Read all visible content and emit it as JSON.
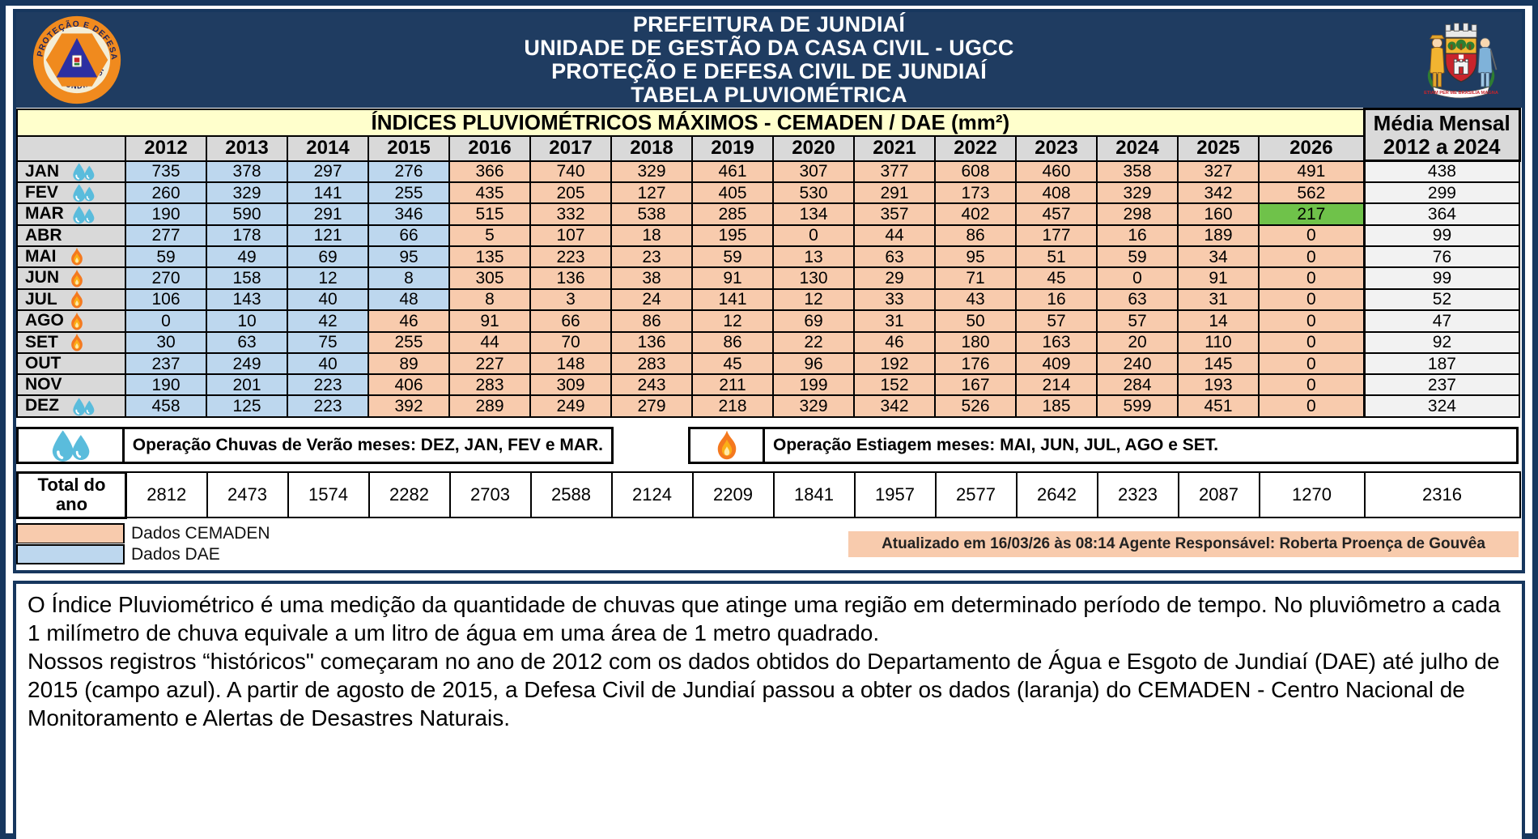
{
  "header": {
    "title_lines": [
      "PREFEITURA DE JUNDIAÍ",
      "UNIDADE DE GESTÃO DA CASA CIVIL - UGCC",
      "PROTEÇÃO E DEFESA CIVIL  DE JUNDIAÍ",
      "TABELA PLUVIOMÉTRICA"
    ],
    "left_logo": "defesa-civil-jundiai-sp",
    "right_logo": "brasao-de-jundiai"
  },
  "table": {
    "title": "ÍNDICES PLUVIOMÉTRICOS MÁXIMOS - CEMADEN / DAE (mm²)",
    "media_header_line1": "Média Mensal",
    "media_header_line2": "2012 a 2024",
    "years": [
      "2012",
      "2013",
      "2014",
      "2015",
      "2016",
      "2017",
      "2018",
      "2019",
      "2020",
      "2021",
      "2022",
      "2023",
      "2024",
      "2025",
      "2026"
    ],
    "rows": [
      {
        "month": "JAN",
        "icon": "water",
        "blue_count": 4,
        "values": [
          735,
          378,
          297,
          276,
          366,
          740,
          329,
          461,
          307,
          377,
          608,
          460,
          358,
          327,
          491
        ],
        "media": 438
      },
      {
        "month": "FEV",
        "icon": "water",
        "blue_count": 4,
        "values": [
          260,
          329,
          141,
          255,
          435,
          205,
          127,
          405,
          530,
          291,
          173,
          408,
          329,
          342,
          562
        ],
        "media": 299
      },
      {
        "month": "MAR",
        "icon": "water",
        "blue_count": 4,
        "green_year": "2026",
        "values": [
          190,
          590,
          291,
          346,
          515,
          332,
          538,
          285,
          134,
          357,
          402,
          457,
          298,
          160,
          217
        ],
        "media": 364
      },
      {
        "month": "ABR",
        "icon": null,
        "blue_count": 4,
        "values": [
          277,
          178,
          121,
          66,
          5,
          107,
          18,
          195,
          0,
          44,
          86,
          177,
          16,
          189,
          0
        ],
        "media": 99
      },
      {
        "month": "MAI",
        "icon": "fire",
        "blue_count": 4,
        "values": [
          59,
          49,
          69,
          95,
          135,
          223,
          23,
          59,
          13,
          63,
          95,
          51,
          59,
          34,
          0
        ],
        "media": 76
      },
      {
        "month": "JUN",
        "icon": "fire",
        "blue_count": 4,
        "values": [
          270,
          158,
          12,
          8,
          305,
          136,
          38,
          91,
          130,
          29,
          71,
          45,
          0,
          91,
          0
        ],
        "media": 99
      },
      {
        "month": "JUL",
        "icon": "fire",
        "blue_count": 4,
        "values": [
          106,
          143,
          40,
          48,
          8,
          3,
          24,
          141,
          12,
          33,
          43,
          16,
          63,
          31,
          0
        ],
        "media": 52
      },
      {
        "month": "AGO",
        "icon": "fire",
        "blue_count": 3,
        "values": [
          0,
          10,
          42,
          46,
          91,
          66,
          86,
          12,
          69,
          31,
          50,
          57,
          57,
          14,
          0
        ],
        "media": 47
      },
      {
        "month": "SET",
        "icon": "fire",
        "blue_count": 3,
        "values": [
          30,
          63,
          75,
          255,
          44,
          70,
          136,
          86,
          22,
          46,
          180,
          163,
          20,
          110,
          0
        ],
        "media": 92
      },
      {
        "month": "OUT",
        "icon": null,
        "blue_count": 3,
        "values": [
          237,
          249,
          40,
          89,
          227,
          148,
          283,
          45,
          96,
          192,
          176,
          409,
          240,
          145,
          0
        ],
        "media": 187
      },
      {
        "month": "NOV",
        "icon": null,
        "blue_count": 3,
        "values": [
          190,
          201,
          223,
          406,
          283,
          309,
          243,
          211,
          199,
          152,
          167,
          214,
          284,
          193,
          0
        ],
        "media": 237
      },
      {
        "month": "DEZ",
        "icon": "water",
        "blue_count": 3,
        "values": [
          458,
          125,
          223,
          392,
          289,
          249,
          279,
          218,
          329,
          342,
          526,
          185,
          599,
          451,
          0
        ],
        "media": 324
      }
    ],
    "totals": {
      "label_line1": "Total do",
      "label_line2": "ano",
      "values": [
        2812,
        2473,
        1574,
        2282,
        2703,
        2588,
        2124,
        2209,
        1841,
        1957,
        2577,
        2642,
        2323,
        2087,
        1270
      ],
      "media": 2316
    }
  },
  "legend": {
    "chuvas_text": "Operação Chuvas de Verão meses: DEZ, JAN, FEV e MAR.",
    "estiagem_text": "Operação Estiagem meses: MAI, JUN, JUL, AGO e SET.",
    "cemaden_label": "Dados CEMADEN",
    "dae_label": "Dados DAE",
    "updated": "Atualizado em 16/03/26 às 08:14 Agente Responsável: Roberta Proença de Gouvêa"
  },
  "colors": {
    "header_navy": "#1F3C61",
    "border_navy": "#17375E",
    "title_yellow": "#FFFFCC",
    "header_gray": "#D9D9D9",
    "cemaden_orange": "#F8CBAD",
    "dae_blue": "#BDD7EE",
    "highlight_green": "#6FC24A",
    "media_gray": "#F2F2F2",
    "drop_blue": "#5ABCDC",
    "flame_orange": "#F4791F"
  },
  "footer": {
    "paragraphs": [
      "O Índice Pluviométrico é uma medição da quantidade de chuvas que atinge uma região em determinado período de tempo. No pluviômetro a cada 1 milímetro de chuva equivale a um litro de água em uma área de 1 metro quadrado.",
      "Nossos registros “históricos\" começaram no ano  de 2012 com os dados obtidos do Departamento de Água e Esgoto de Jundiaí (DAE) até julho de 2015 (campo azul). A partir de agosto de 2015, a Defesa Civil de Jundiaí passou a obter os dados (laranja) do CEMADEN - Centro Nacional de Monitoramento e Alertas de Desastres Naturais."
    ]
  }
}
